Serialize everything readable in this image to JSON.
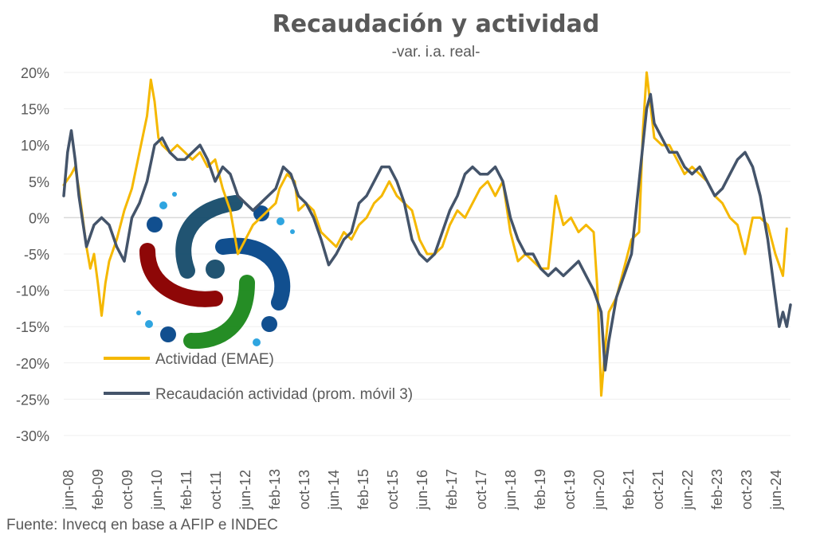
{
  "chart_data": {
    "type": "line",
    "title": "Recaudación y actividad",
    "subtitle": "-var. i.a. real-",
    "source": "Fuente: Invecq en base a AFIP e INDEC",
    "ylim": [
      -30,
      20
    ],
    "yticks": [
      20,
      15,
      10,
      5,
      0,
      -5,
      -10,
      -15,
      -20,
      -25,
      -30
    ],
    "ytick_labels": [
      "20%",
      "15%",
      "10%",
      "5%",
      "0%",
      "-5%",
      "-10%",
      "-15%",
      "-20%",
      "-25%",
      "-30%"
    ],
    "x_tick_labels": [
      "jun-08",
      "feb-09",
      "oct-09",
      "jun-10",
      "feb-11",
      "oct-11",
      "jun-12",
      "feb-13",
      "oct-13",
      "jun-14",
      "feb-15",
      "oct-15",
      "jun-16",
      "feb-17",
      "oct-17",
      "jun-18",
      "feb-19",
      "oct-19",
      "jun-20",
      "feb-21",
      "oct-21",
      "jun-22",
      "feb-23",
      "oct-23",
      "jun-24"
    ],
    "x_start": "2008-06",
    "x_end": "2024-06",
    "legend_position": "center-left",
    "grid": true,
    "series": [
      {
        "name": "Actividad (EMAE)",
        "color": "#F5B800",
        "points": [
          [
            "2008-06",
            4.5
          ],
          [
            "2008-08",
            6
          ],
          [
            "2008-09",
            7
          ],
          [
            "2008-10",
            4
          ],
          [
            "2008-11",
            0
          ],
          [
            "2008-12",
            -4
          ],
          [
            "2009-01",
            -7
          ],
          [
            "2009-02",
            -5
          ],
          [
            "2009-03",
            -9
          ],
          [
            "2009-04",
            -13.5
          ],
          [
            "2009-05",
            -9
          ],
          [
            "2009-06",
            -6
          ],
          [
            "2009-08",
            -3
          ],
          [
            "2009-10",
            1
          ],
          [
            "2009-12",
            4
          ],
          [
            "2010-02",
            9
          ],
          [
            "2010-04",
            14
          ],
          [
            "2010-05",
            19
          ],
          [
            "2010-06",
            16
          ],
          [
            "2010-07",
            11
          ],
          [
            "2010-08",
            10
          ],
          [
            "2010-10",
            9
          ],
          [
            "2010-12",
            10
          ],
          [
            "2011-02",
            9
          ],
          [
            "2011-04",
            8
          ],
          [
            "2011-06",
            9
          ],
          [
            "2011-08",
            7
          ],
          [
            "2011-10",
            8
          ],
          [
            "2011-11",
            6
          ],
          [
            "2011-12",
            4
          ],
          [
            "2012-02",
            1
          ],
          [
            "2012-03",
            -2
          ],
          [
            "2012-04",
            -5
          ],
          [
            "2012-05",
            -4
          ],
          [
            "2012-06",
            -3
          ],
          [
            "2012-08",
            -1
          ],
          [
            "2012-10",
            0
          ],
          [
            "2012-12",
            1
          ],
          [
            "2013-02",
            2
          ],
          [
            "2013-03",
            4
          ],
          [
            "2013-05",
            6
          ],
          [
            "2013-07",
            5
          ],
          [
            "2013-08",
            1
          ],
          [
            "2013-10",
            2
          ],
          [
            "2013-12",
            1
          ],
          [
            "2014-02",
            -2
          ],
          [
            "2014-04",
            -3
          ],
          [
            "2014-06",
            -4
          ],
          [
            "2014-08",
            -2
          ],
          [
            "2014-10",
            -3
          ],
          [
            "2014-12",
            -1
          ],
          [
            "2015-02",
            0
          ],
          [
            "2015-04",
            2
          ],
          [
            "2015-06",
            3
          ],
          [
            "2015-08",
            5
          ],
          [
            "2015-10",
            3
          ],
          [
            "2015-12",
            2
          ],
          [
            "2016-02",
            1
          ],
          [
            "2016-04",
            -3
          ],
          [
            "2016-06",
            -5
          ],
          [
            "2016-08",
            -5
          ],
          [
            "2016-10",
            -4
          ],
          [
            "2016-12",
            -1
          ],
          [
            "2017-02",
            1
          ],
          [
            "2017-04",
            0
          ],
          [
            "2017-06",
            2
          ],
          [
            "2017-08",
            4
          ],
          [
            "2017-10",
            5
          ],
          [
            "2017-12",
            3
          ],
          [
            "2018-02",
            5
          ],
          [
            "2018-04",
            -2
          ],
          [
            "2018-06",
            -6
          ],
          [
            "2018-08",
            -5
          ],
          [
            "2018-10",
            -6
          ],
          [
            "2018-12",
            -7
          ],
          [
            "2019-02",
            -7
          ],
          [
            "2019-03",
            -2
          ],
          [
            "2019-04",
            3
          ],
          [
            "2019-06",
            -1
          ],
          [
            "2019-08",
            0
          ],
          [
            "2019-10",
            -2
          ],
          [
            "2019-12",
            -1
          ],
          [
            "2020-02",
            -2
          ],
          [
            "2020-03",
            -10
          ],
          [
            "2020-04",
            -24.5
          ],
          [
            "2020-05",
            -18
          ],
          [
            "2020-06",
            -13
          ],
          [
            "2020-08",
            -11
          ],
          [
            "2020-10",
            -7
          ],
          [
            "2020-12",
            -3
          ],
          [
            "2021-02",
            -2
          ],
          [
            "2021-03",
            12
          ],
          [
            "2021-04",
            20
          ],
          [
            "2021-06",
            11
          ],
          [
            "2021-08",
            10
          ],
          [
            "2021-10",
            10
          ],
          [
            "2021-12",
            8
          ],
          [
            "2022-02",
            6
          ],
          [
            "2022-04",
            7
          ],
          [
            "2022-06",
            6
          ],
          [
            "2022-08",
            5
          ],
          [
            "2022-10",
            3
          ],
          [
            "2022-12",
            2
          ],
          [
            "2023-02",
            0
          ],
          [
            "2023-04",
            -1
          ],
          [
            "2023-06",
            -5
          ],
          [
            "2023-08",
            0
          ],
          [
            "2023-10",
            0
          ],
          [
            "2023-12",
            -1
          ],
          [
            "2024-02",
            -5
          ],
          [
            "2024-04",
            -8
          ],
          [
            "2024-05",
            -1.5
          ]
        ]
      },
      {
        "name": "Recaudación actividad (prom. móvil 3)",
        "color": "#44546A",
        "points": [
          [
            "2008-06",
            3
          ],
          [
            "2008-07",
            9
          ],
          [
            "2008-08",
            12
          ],
          [
            "2008-09",
            8
          ],
          [
            "2008-10",
            3
          ],
          [
            "2008-12",
            -4
          ],
          [
            "2009-02",
            -1
          ],
          [
            "2009-04",
            0
          ],
          [
            "2009-06",
            -1
          ],
          [
            "2009-08",
            -4
          ],
          [
            "2009-10",
            -6
          ],
          [
            "2009-12",
            0
          ],
          [
            "2010-02",
            2
          ],
          [
            "2010-04",
            5
          ],
          [
            "2010-06",
            10
          ],
          [
            "2010-08",
            11
          ],
          [
            "2010-10",
            9
          ],
          [
            "2010-12",
            8
          ],
          [
            "2011-02",
            8
          ],
          [
            "2011-04",
            9
          ],
          [
            "2011-06",
            10
          ],
          [
            "2011-08",
            8
          ],
          [
            "2011-10",
            5
          ],
          [
            "2011-12",
            7
          ],
          [
            "2012-02",
            6
          ],
          [
            "2012-04",
            3
          ],
          [
            "2012-06",
            2
          ],
          [
            "2012-08",
            1
          ],
          [
            "2012-10",
            2
          ],
          [
            "2012-12",
            3
          ],
          [
            "2013-02",
            4
          ],
          [
            "2013-04",
            7
          ],
          [
            "2013-06",
            6
          ],
          [
            "2013-08",
            3
          ],
          [
            "2013-10",
            2
          ],
          [
            "2013-12",
            0
          ],
          [
            "2014-02",
            -3
          ],
          [
            "2014-04",
            -6.5
          ],
          [
            "2014-06",
            -5
          ],
          [
            "2014-08",
            -3
          ],
          [
            "2014-10",
            -2
          ],
          [
            "2014-12",
            2
          ],
          [
            "2015-02",
            3
          ],
          [
            "2015-04",
            5
          ],
          [
            "2015-06",
            7
          ],
          [
            "2015-08",
            7
          ],
          [
            "2015-10",
            5
          ],
          [
            "2015-12",
            2
          ],
          [
            "2016-02",
            -3
          ],
          [
            "2016-04",
            -5
          ],
          [
            "2016-06",
            -6
          ],
          [
            "2016-08",
            -5
          ],
          [
            "2016-10",
            -2
          ],
          [
            "2016-12",
            1
          ],
          [
            "2017-02",
            3
          ],
          [
            "2017-04",
            6
          ],
          [
            "2017-06",
            7
          ],
          [
            "2017-08",
            6
          ],
          [
            "2017-10",
            6
          ],
          [
            "2017-12",
            7
          ],
          [
            "2018-02",
            5
          ],
          [
            "2018-04",
            0
          ],
          [
            "2018-06",
            -3
          ],
          [
            "2018-08",
            -5
          ],
          [
            "2018-10",
            -5
          ],
          [
            "2018-12",
            -7
          ],
          [
            "2019-02",
            -8
          ],
          [
            "2019-04",
            -7
          ],
          [
            "2019-06",
            -8
          ],
          [
            "2019-08",
            -7
          ],
          [
            "2019-10",
            -6
          ],
          [
            "2019-12",
            -8
          ],
          [
            "2020-02",
            -10
          ],
          [
            "2020-04",
            -13
          ],
          [
            "2020-05",
            -21
          ],
          [
            "2020-06",
            -17
          ],
          [
            "2020-08",
            -11
          ],
          [
            "2020-10",
            -8
          ],
          [
            "2020-12",
            -5
          ],
          [
            "2021-02",
            5
          ],
          [
            "2021-04",
            15
          ],
          [
            "2021-05",
            17
          ],
          [
            "2021-06",
            13
          ],
          [
            "2021-08",
            11
          ],
          [
            "2021-10",
            9
          ],
          [
            "2021-12",
            9
          ],
          [
            "2022-02",
            7
          ],
          [
            "2022-04",
            6
          ],
          [
            "2022-06",
            7
          ],
          [
            "2022-08",
            5
          ],
          [
            "2022-10",
            3
          ],
          [
            "2022-12",
            4
          ],
          [
            "2023-02",
            6
          ],
          [
            "2023-04",
            8
          ],
          [
            "2023-06",
            9
          ],
          [
            "2023-08",
            7
          ],
          [
            "2023-10",
            3
          ],
          [
            "2023-12",
            -3
          ],
          [
            "2024-02",
            -11
          ],
          [
            "2024-03",
            -15
          ],
          [
            "2024-04",
            -13
          ],
          [
            "2024-05",
            -15
          ],
          [
            "2024-06",
            -12
          ]
        ]
      }
    ]
  }
}
